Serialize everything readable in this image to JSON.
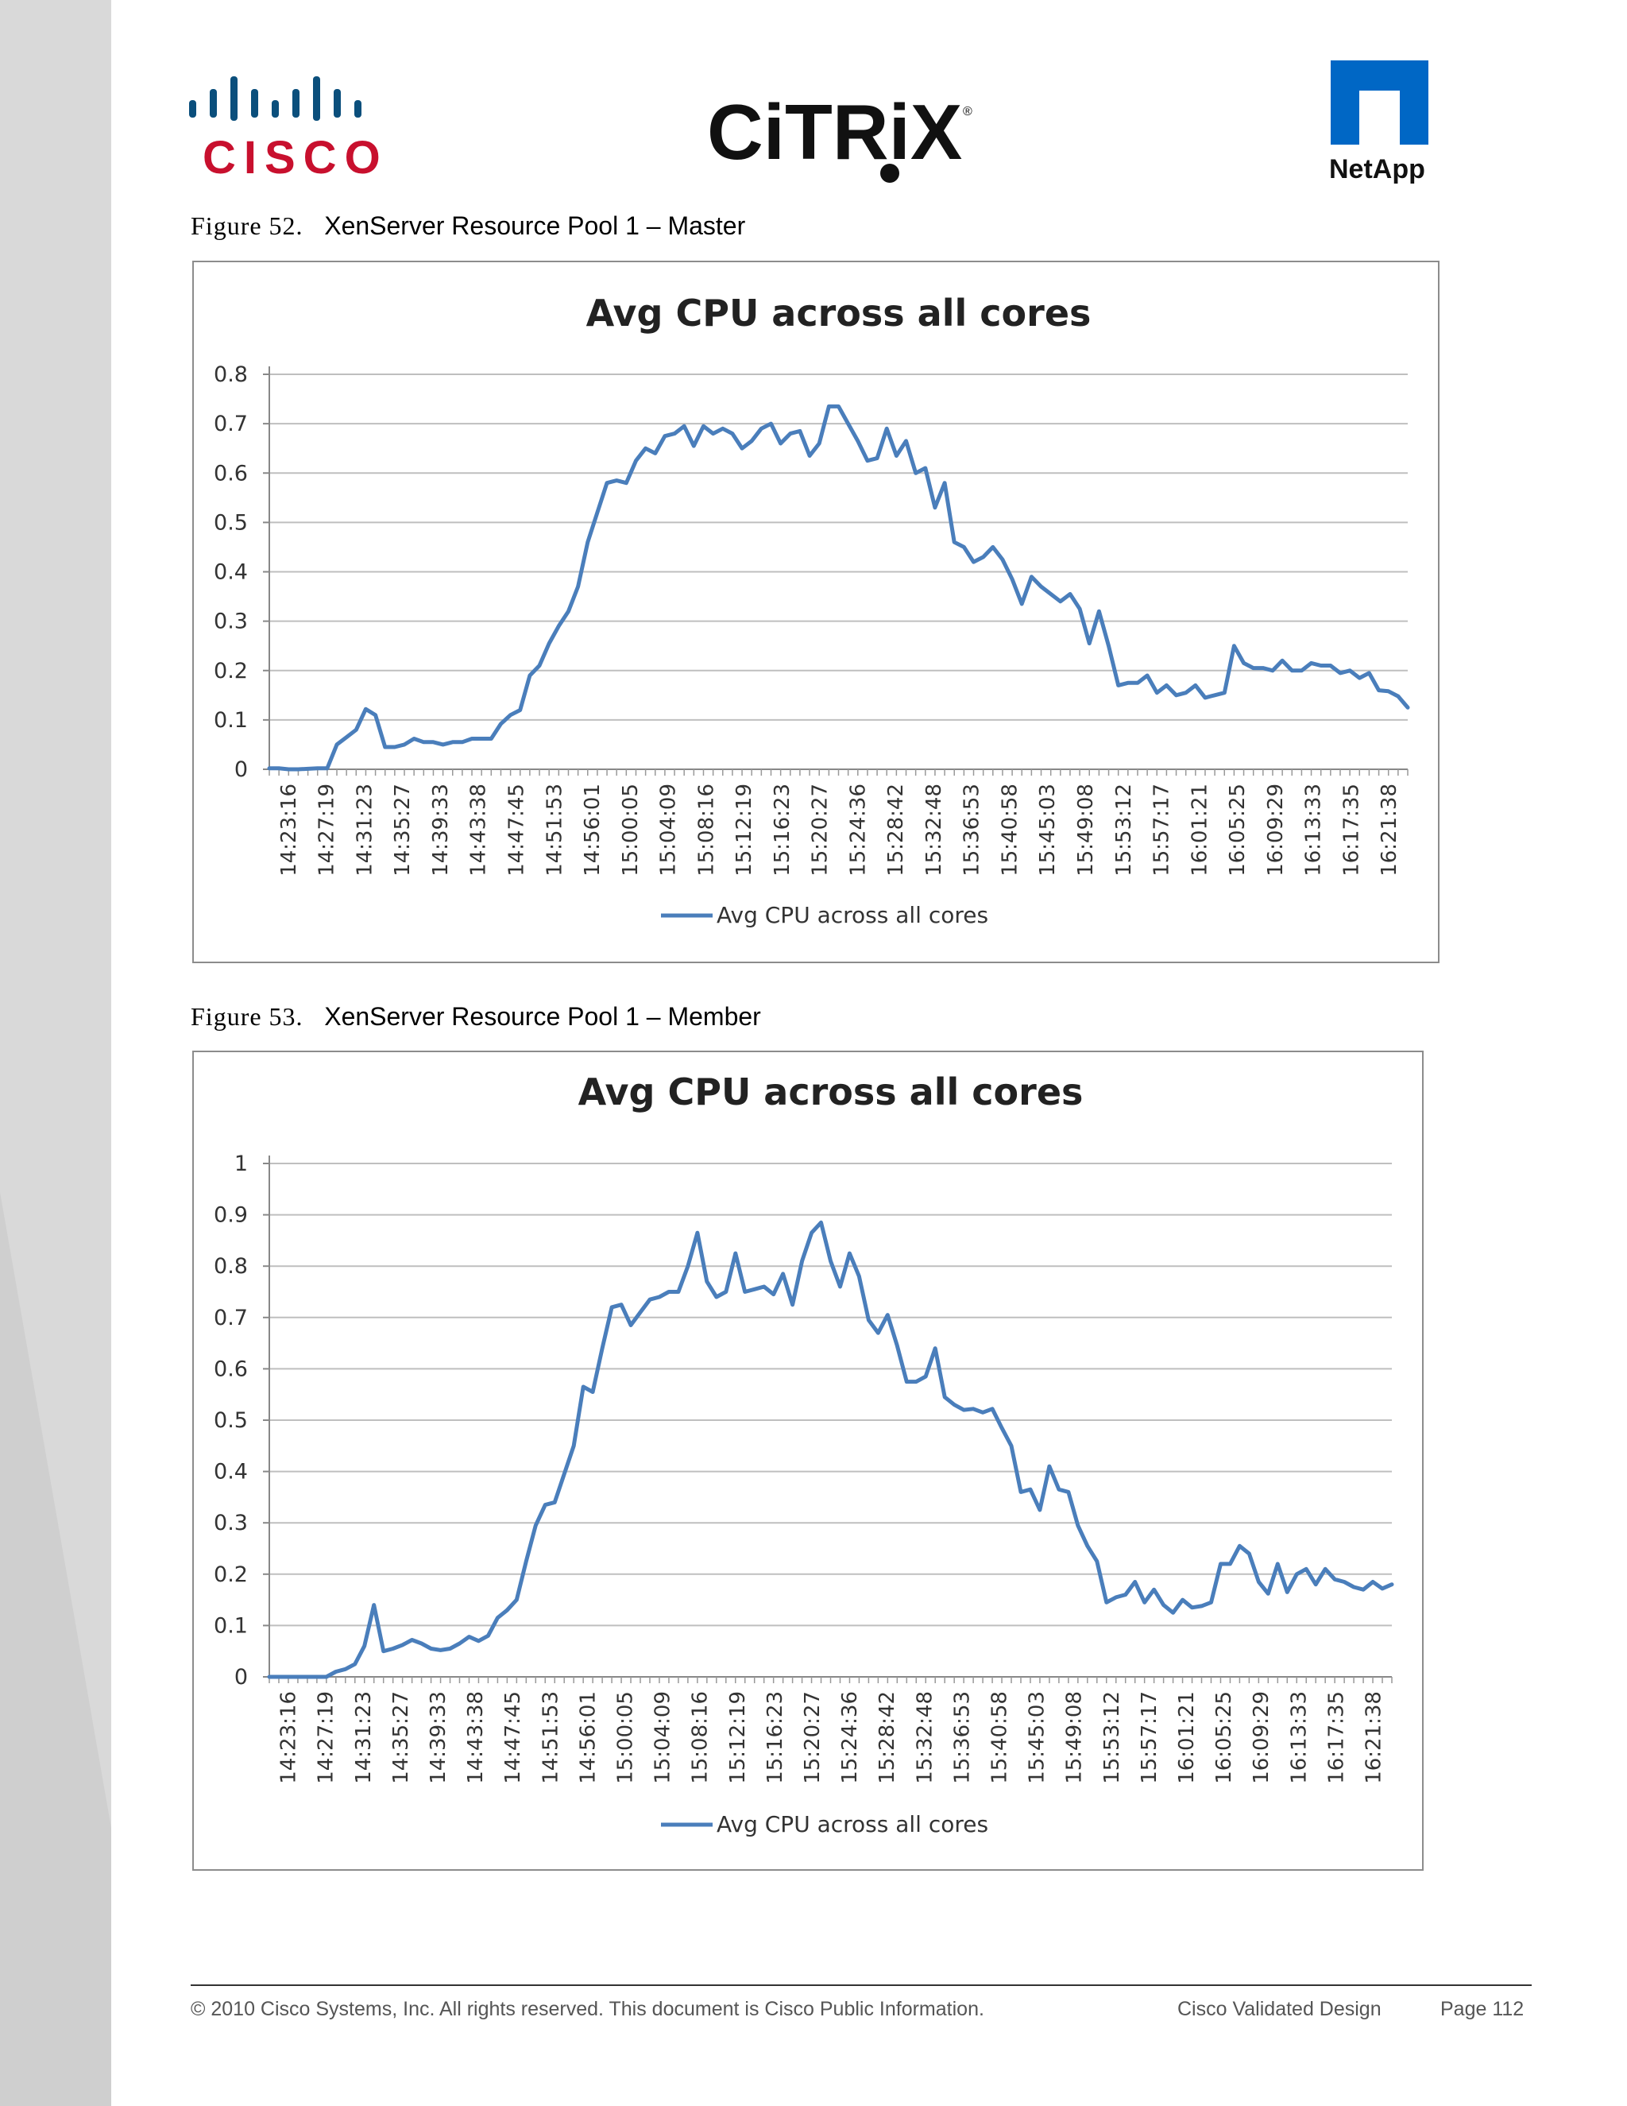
{
  "header": {
    "cisco_logo_text": "CISCO",
    "citrix_logo_text": "CiTRiX",
    "netapp_logo_text": "NetApp"
  },
  "figures": [
    {
      "label": "Figure 52.",
      "title": "XenServer Resource Pool 1 – Master"
    },
    {
      "label": "Figure 53.",
      "title": "XenServer Resource Pool 1 – Member"
    }
  ],
  "colors": {
    "series": "#4a7ebb",
    "grid": "#bfbfbf",
    "frame": "#8c8c8c"
  },
  "chart_data": [
    {
      "type": "line",
      "title": "Avg CPU across all cores",
      "xlabel": "",
      "ylabel": "",
      "ylim": [
        0,
        0.8
      ],
      "yticks": [
        0,
        0.1,
        0.2,
        0.3,
        0.4,
        0.5,
        0.6,
        0.7,
        0.8
      ],
      "ytick_labels": [
        "0",
        "0.1",
        "0.2",
        "0.3",
        "0.4",
        "0.5",
        "0.6",
        "0.7",
        "0.8"
      ],
      "grid": true,
      "legend": "bottom",
      "x_tick_labels": [
        "14:23:16",
        "14:27:19",
        "14:31:23",
        "14:35:27",
        "14:39:33",
        "14:43:38",
        "14:47:45",
        "14:51:53",
        "14:56:01",
        "15:00:05",
        "15:04:09",
        "15:08:16",
        "15:12:19",
        "15:16:23",
        "15:20:27",
        "15:24:36",
        "15:28:42",
        "15:32:48",
        "15:36:53",
        "15:40:58",
        "15:45:03",
        "15:49:08",
        "15:53:12",
        "15:57:17",
        "16:01:21",
        "16:05:25",
        "16:09:29",
        "16:13:33",
        "16:17:35",
        "16:21:38"
      ],
      "series": [
        {
          "name": "Avg CPU across all cores",
          "values": [
            0.002,
            0.002,
            0.0,
            0.0,
            0.001,
            0.002,
            0.002,
            0.05,
            0.065,
            0.08,
            0.122,
            0.11,
            0.045,
            0.045,
            0.05,
            0.062,
            0.055,
            0.055,
            0.05,
            0.055,
            0.055,
            0.062,
            0.062,
            0.062,
            0.092,
            0.11,
            0.12,
            0.19,
            0.21,
            0.255,
            0.29,
            0.32,
            0.37,
            0.46,
            0.52,
            0.58,
            0.585,
            0.58,
            0.625,
            0.65,
            0.64,
            0.675,
            0.68,
            0.695,
            0.655,
            0.695,
            0.68,
            0.69,
            0.68,
            0.65,
            0.665,
            0.69,
            0.7,
            0.66,
            0.68,
            0.685,
            0.635,
            0.66,
            0.735,
            0.735,
            0.7,
            0.665,
            0.625,
            0.63,
            0.69,
            0.635,
            0.665,
            0.6,
            0.61,
            0.53,
            0.58,
            0.46,
            0.45,
            0.42,
            0.43,
            0.45,
            0.425,
            0.385,
            0.335,
            0.39,
            0.37,
            0.355,
            0.34,
            0.355,
            0.325,
            0.255,
            0.32,
            0.25,
            0.17,
            0.175,
            0.175,
            0.19,
            0.155,
            0.17,
            0.15,
            0.155,
            0.17,
            0.145,
            0.15,
            0.155,
            0.25,
            0.215,
            0.205,
            0.205,
            0.2,
            0.22,
            0.2,
            0.2,
            0.215,
            0.21,
            0.21,
            0.195,
            0.2,
            0.185,
            0.195,
            0.16,
            0.158,
            0.148,
            0.125
          ]
        }
      ]
    },
    {
      "type": "line",
      "title": "Avg CPU across all cores",
      "xlabel": "",
      "ylabel": "",
      "ylim": [
        0,
        1
      ],
      "yticks": [
        0,
        0.1,
        0.2,
        0.3,
        0.4,
        0.5,
        0.6,
        0.7,
        0.8,
        0.9,
        1
      ],
      "ytick_labels": [
        "0",
        "0.1",
        "0.2",
        "0.3",
        "0.4",
        "0.5",
        "0.6",
        "0.7",
        "0.8",
        "0.9",
        "1"
      ],
      "grid": true,
      "legend": "bottom",
      "x_tick_labels": [
        "14:23:16",
        "14:27:19",
        "14:31:23",
        "14:35:27",
        "14:39:33",
        "14:43:38",
        "14:47:45",
        "14:51:53",
        "14:56:01",
        "15:00:05",
        "15:04:09",
        "15:08:16",
        "15:12:19",
        "15:16:23",
        "15:20:27",
        "15:24:36",
        "15:28:42",
        "15:32:48",
        "15:36:53",
        "15:40:58",
        "15:45:03",
        "15:49:08",
        "15:53:12",
        "15:57:17",
        "16:01:21",
        "16:05:25",
        "16:09:29",
        "16:13:33",
        "16:17:35",
        "16:21:38"
      ],
      "series": [
        {
          "name": "Avg CPU across all cores",
          "values": [
            0.0,
            0.0,
            0.0,
            0.0,
            0.0,
            0.0,
            0.0,
            0.01,
            0.015,
            0.025,
            0.06,
            0.14,
            0.05,
            0.055,
            0.062,
            0.072,
            0.065,
            0.055,
            0.052,
            0.055,
            0.065,
            0.078,
            0.07,
            0.08,
            0.115,
            0.13,
            0.15,
            0.225,
            0.295,
            0.335,
            0.34,
            0.395,
            0.45,
            0.565,
            0.555,
            0.64,
            0.72,
            0.725,
            0.685,
            0.71,
            0.735,
            0.74,
            0.75,
            0.75,
            0.8,
            0.865,
            0.77,
            0.74,
            0.75,
            0.825,
            0.75,
            0.755,
            0.76,
            0.745,
            0.785,
            0.725,
            0.81,
            0.865,
            0.885,
            0.81,
            0.76,
            0.825,
            0.78,
            0.695,
            0.67,
            0.705,
            0.645,
            0.575,
            0.575,
            0.585,
            0.64,
            0.545,
            0.53,
            0.52,
            0.522,
            0.515,
            0.522,
            0.485,
            0.45,
            0.36,
            0.365,
            0.325,
            0.41,
            0.365,
            0.36,
            0.295,
            0.255,
            0.225,
            0.145,
            0.155,
            0.16,
            0.185,
            0.145,
            0.17,
            0.14,
            0.125,
            0.15,
            0.135,
            0.138,
            0.145,
            0.22,
            0.22,
            0.255,
            0.24,
            0.185,
            0.162,
            0.22,
            0.165,
            0.2,
            0.21,
            0.18,
            0.21,
            0.19,
            0.185,
            0.175,
            0.17,
            0.185,
            0.172,
            0.18
          ]
        }
      ]
    }
  ],
  "footer": {
    "copyright": "© 2010 Cisco Systems, Inc. All rights reserved. This document is Cisco Public Information.",
    "design": "Cisco Validated Design",
    "page": "Page 112"
  }
}
